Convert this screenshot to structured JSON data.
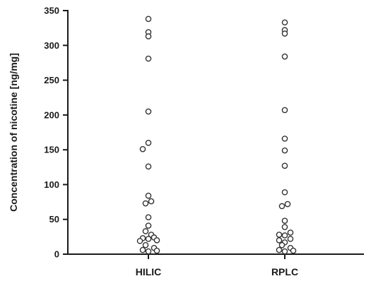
{
  "chart_data": {
    "type": "scatter",
    "title": "",
    "xlabel": "",
    "ylabel": "Concentration of nicotine [ng/mg]",
    "ylim": [
      0,
      350
    ],
    "yticks": [
      0,
      50,
      100,
      150,
      200,
      250,
      300,
      350
    ],
    "grid": false,
    "legend": "none",
    "categories": [
      "HILIC",
      "RPLC"
    ],
    "series": [
      {
        "category": "HILIC",
        "points": [
          {
            "y": 338,
            "jitter": 0
          },
          {
            "y": 319,
            "jitter": 0
          },
          {
            "y": 313,
            "jitter": 0
          },
          {
            "y": 281,
            "jitter": 0
          },
          {
            "y": 205,
            "jitter": 0
          },
          {
            "y": 160,
            "jitter": 0
          },
          {
            "y": 151,
            "jitter": -1
          },
          {
            "y": 126,
            "jitter": 0
          },
          {
            "y": 84,
            "jitter": 0
          },
          {
            "y": 76,
            "jitter": 0.5
          },
          {
            "y": 73,
            "jitter": -0.5
          },
          {
            "y": 53,
            "jitter": 0
          },
          {
            "y": 41,
            "jitter": 0
          },
          {
            "y": 33,
            "jitter": -0.5
          },
          {
            "y": 28,
            "jitter": 0.5
          },
          {
            "y": 24,
            "jitter": 1
          },
          {
            "y": 23,
            "jitter": -1
          },
          {
            "y": 22,
            "jitter": 0
          },
          {
            "y": 20,
            "jitter": 1.5
          },
          {
            "y": 19,
            "jitter": -1.5
          },
          {
            "y": 13,
            "jitter": -0.5
          },
          {
            "y": 9,
            "jitter": 1
          },
          {
            "y": 6,
            "jitter": -1
          },
          {
            "y": 5,
            "jitter": 1.5
          },
          {
            "y": 4,
            "jitter": 0
          }
        ]
      },
      {
        "category": "RPLC",
        "points": [
          {
            "y": 333,
            "jitter": 0
          },
          {
            "y": 322,
            "jitter": 0
          },
          {
            "y": 317,
            "jitter": 0
          },
          {
            "y": 284,
            "jitter": 0
          },
          {
            "y": 207,
            "jitter": 0
          },
          {
            "y": 166,
            "jitter": 0
          },
          {
            "y": 149,
            "jitter": 0
          },
          {
            "y": 127,
            "jitter": 0
          },
          {
            "y": 89,
            "jitter": 0
          },
          {
            "y": 72,
            "jitter": 0.5
          },
          {
            "y": 69,
            "jitter": -0.5
          },
          {
            "y": 48,
            "jitter": 0
          },
          {
            "y": 39,
            "jitter": 0
          },
          {
            "y": 31,
            "jitter": 1
          },
          {
            "y": 28,
            "jitter": -1
          },
          {
            "y": 27,
            "jitter": 0
          },
          {
            "y": 22,
            "jitter": 1
          },
          {
            "y": 20,
            "jitter": -1
          },
          {
            "y": 17,
            "jitter": 0
          },
          {
            "y": 13,
            "jitter": -0.5
          },
          {
            "y": 9,
            "jitter": 1
          },
          {
            "y": 6,
            "jitter": -1
          },
          {
            "y": 5,
            "jitter": 1.5
          },
          {
            "y": 4,
            "jitter": 0
          }
        ]
      }
    ]
  }
}
